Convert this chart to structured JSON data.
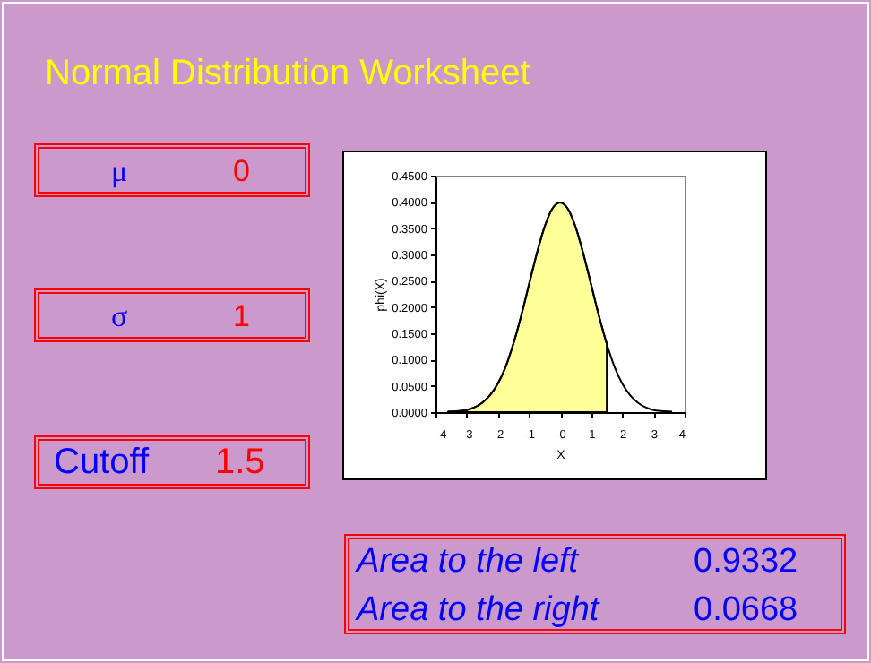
{
  "chart_data": [
    {
      "type": "other",
      "title": "Normal Distribution Worksheet",
      "annotations": [
        "μ",
        "0",
        "σ",
        "1",
        "Cutoff",
        "1.5",
        "Area to the left",
        "0.9332",
        "Area to the right",
        "0.0668"
      ]
    },
    {
      "type": "area",
      "xlabel": "X",
      "ylabel": "phi(X)",
      "xlim": [
        -4,
        4
      ],
      "ylim": [
        0,
        0.45
      ],
      "xticks": [
        -4,
        -3,
        -2,
        -1,
        {
          "value": 0,
          "label": "-0"
        },
        1,
        2,
        3,
        4
      ],
      "yticks": [
        {
          "value": 0,
          "label": "0.0000"
        },
        {
          "value": 0.05,
          "label": "0.0500"
        },
        {
          "value": 0.1,
          "label": "0.1000"
        },
        {
          "value": 0.15,
          "label": "0.1500"
        },
        {
          "value": 0.2,
          "label": "0.2000"
        },
        {
          "value": 0.25,
          "label": "0.2500"
        },
        {
          "value": 0.3,
          "label": "0.3000"
        },
        {
          "value": 0.35,
          "label": "0.3500"
        },
        {
          "value": 0.4,
          "label": "0.4000"
        },
        {
          "value": 0.45,
          "label": "0.4500"
        }
      ],
      "series": [
        {
          "type": "area",
          "color": "#ffff99",
          "x": [
            -3.6,
            -3.25,
            -3,
            -2.75,
            -2.5,
            -2.25,
            -2,
            -1.75,
            -1.5,
            -1.25,
            -1,
            -0.75,
            -0.5,
            -0.25,
            0,
            0.25,
            0.5,
            0.75,
            1,
            1.25,
            1.5
          ],
          "values": [
            0.001,
            0.002,
            0.004,
            0.009,
            0.018,
            0.032,
            0.054,
            0.086,
            0.13,
            0.183,
            0.242,
            0.301,
            0.352,
            0.387,
            0.399,
            0.387,
            0.352,
            0.301,
            0.242,
            0.183,
            0.13
          ]
        },
        {
          "type": "line",
          "color": "#000000",
          "x": [
            -3.6,
            -3.25,
            -3,
            -2.75,
            -2.5,
            -2.25,
            -2,
            -1.75,
            -1.5,
            -1.25,
            -1,
            -0.75,
            -0.5,
            -0.25,
            0,
            0.25,
            0.5,
            0.75,
            1,
            1.25,
            1.5,
            1.75,
            2,
            2.25,
            2.5,
            2.75,
            3,
            3.25,
            3.6
          ],
          "values": [
            0.001,
            0.002,
            0.004,
            0.009,
            0.018,
            0.032,
            0.054,
            0.086,
            0.13,
            0.183,
            0.242,
            0.301,
            0.352,
            0.387,
            0.399,
            0.387,
            0.352,
            0.301,
            0.242,
            0.183,
            0.13,
            0.086,
            0.054,
            0.032,
            0.018,
            0.009,
            0.004,
            0.002,
            0.001
          ]
        }
      ]
    }
  ]
}
